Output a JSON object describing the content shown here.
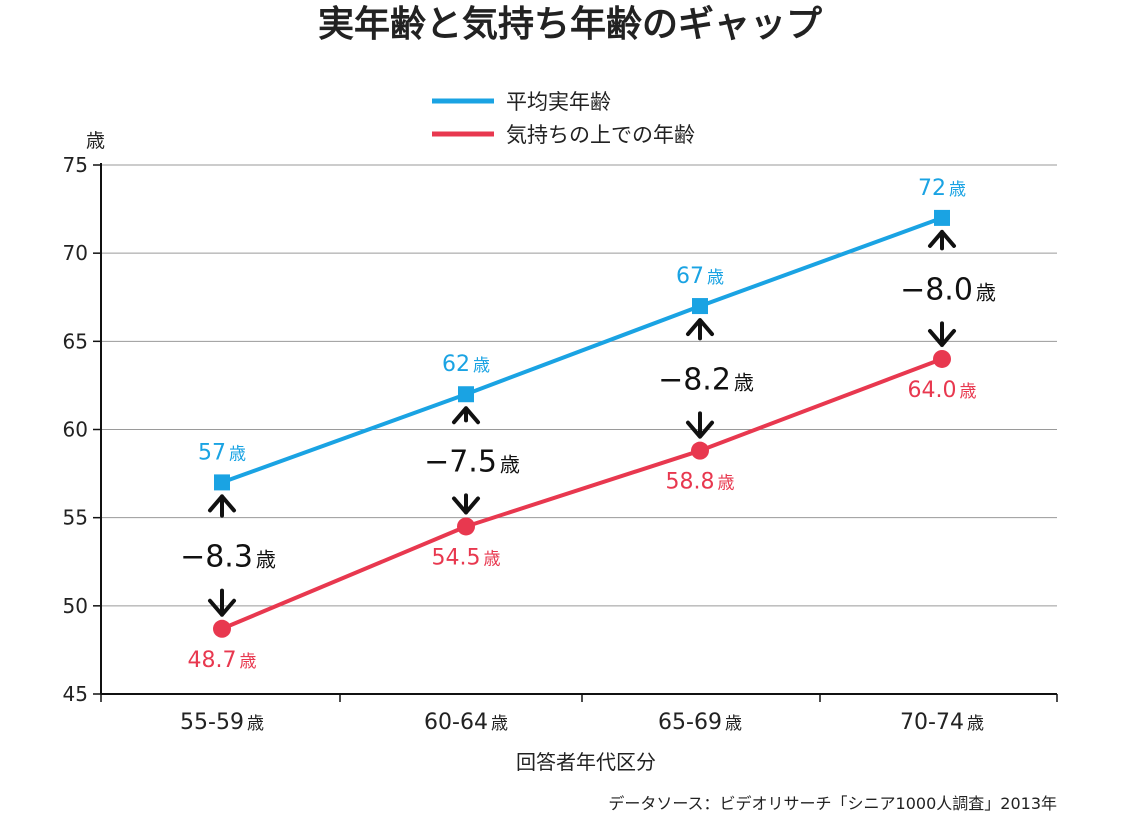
{
  "chart_data": {
    "type": "line",
    "title": "実年齢と気持ち年齢のギャップ",
    "xlabel": "回答者年代区分",
    "ylabel": "歳",
    "ylim": [
      45,
      75
    ],
    "yticks": [
      45,
      50,
      55,
      60,
      65,
      70,
      75
    ],
    "grid": true,
    "legend_position": "top-center",
    "categories": [
      "55-59",
      "60-64",
      "65-69",
      "70-74"
    ],
    "category_unit": "歳",
    "series": [
      {
        "name": "平均実年齢",
        "color": "#1aa3e3",
        "marker": "square",
        "values": [
          57,
          62,
          67,
          72
        ],
        "labels": [
          "57",
          "62",
          "67",
          "72"
        ]
      },
      {
        "name": "気持ちの上での年齢",
        "color": "#e8384f",
        "marker": "circle",
        "values": [
          48.7,
          54.5,
          58.8,
          64.0
        ],
        "labels": [
          "48.7",
          "54.5",
          "58.8",
          "64.0"
        ]
      }
    ],
    "gaps": [
      "−8.3",
      "−7.5",
      "−8.2",
      "−8.0"
    ],
    "value_unit": "歳",
    "source": "データソース：ビデオリサーチ「シニア1000人調査」2013年"
  }
}
